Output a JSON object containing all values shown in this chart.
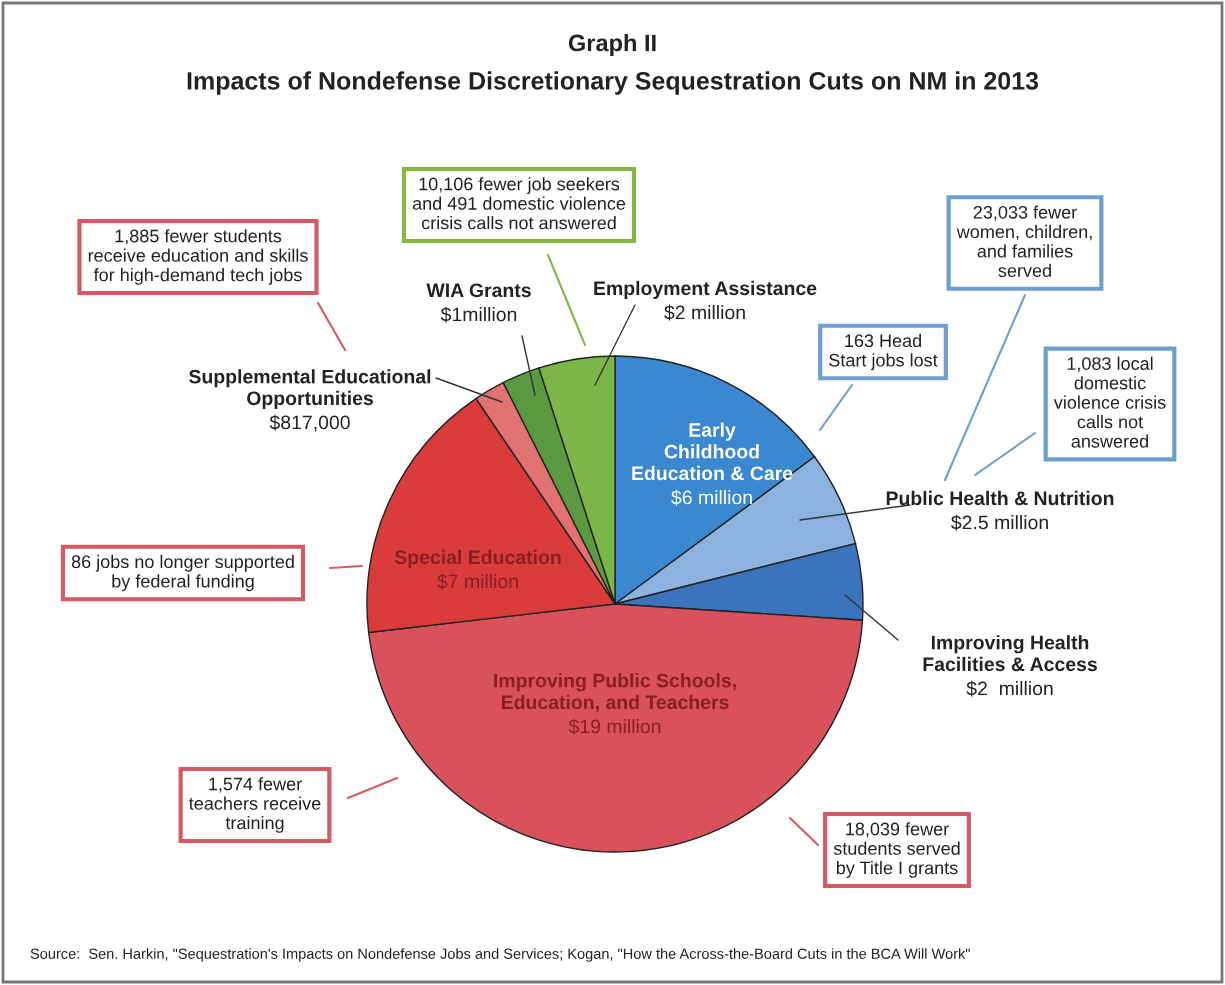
{
  "chart_data": {
    "type": "pie",
    "title": "Graph II",
    "subtitle": "Impacts of Nondefense Discretionary Sequestration Cuts on NM in 2013",
    "categories": [
      "Early\nChildhood\nEducation & Care",
      "Public Health & Nutrition",
      "Improving Health\nFacilities & Access",
      "Improving Public Schools,\nEducation, and Teachers",
      "Special Education",
      "Supplemental Educational\nOpportunities",
      "WIA Grants",
      "Employment Assistance"
    ],
    "values": [
      6000000,
      2500000,
      2000000,
      19000000,
      7000000,
      817000,
      1000000,
      2000000
    ],
    "value_labels": [
      "$6 million",
      "$2.5 million",
      "$2  million",
      "$19 million",
      "$7 million",
      "$817,000",
      "$1million",
      "$2 million"
    ],
    "colors": [
      "#3b88d0",
      "#8cb3e0",
      "#3c73bd",
      "#d9525b",
      "#d93c3a",
      "#e27171",
      "#5c9a41",
      "#7db648"
    ],
    "annotations": [
      "1,885 fewer students\nreceive education and skills\nfor high-demand tech jobs",
      "10,106 fewer job seekers\nand 491 domestic violence\ncrisis calls not answered",
      "23,033 fewer\nwomen, children,\nand families\nserved",
      "163 Head\nStart jobs lost",
      "1,083 local\ndomestic\nviolence crisis\ncalls not\nanswered",
      "86 jobs no longer supported\nby federal funding",
      "1,574 fewer\nteachers receive\ntraining",
      "18,039 fewer\nstudents served\nby Title I grants",
      "Source:  Sen. Harkin, \"Sequestration's Impacts on Nondefense Jobs and Services; Kogan, \"How the Across-the-Board Cuts in the BCA Will Work\""
    ]
  }
}
